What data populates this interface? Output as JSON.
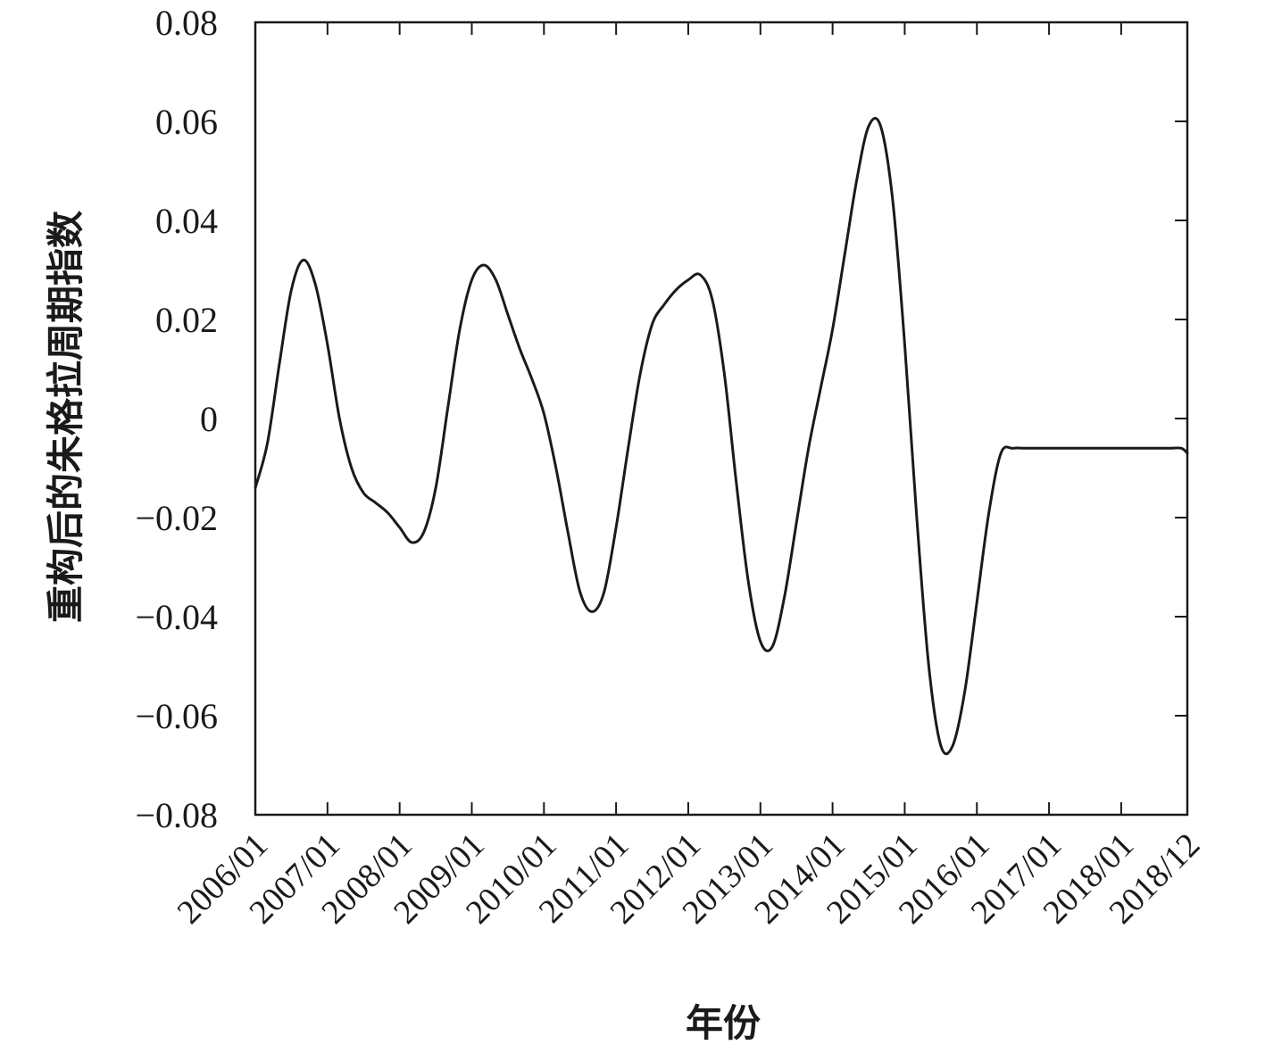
{
  "chart_data": {
    "type": "line",
    "xlabel": "年份",
    "ylabel": "重构后的朱格拉周期指数",
    "ylim": [
      -0.08,
      0.08
    ],
    "yticks": [
      {
        "value": 0.08,
        "label": "0.08"
      },
      {
        "value": 0.06,
        "label": "0.06"
      },
      {
        "value": 0.04,
        "label": "0.04"
      },
      {
        "value": 0.02,
        "label": "0.02"
      },
      {
        "value": 0,
        "label": "0"
      },
      {
        "value": -0.02,
        "label": "−0.02"
      },
      {
        "value": -0.04,
        "label": "−0.04"
      },
      {
        "value": -0.06,
        "label": "−0.06"
      },
      {
        "value": -0.08,
        "label": "−0.08"
      }
    ],
    "xticks": [
      {
        "value": "2006/01",
        "label": "2006/01"
      },
      {
        "value": "2007/01",
        "label": "2007/01"
      },
      {
        "value": "2008/01",
        "label": "2008/01"
      },
      {
        "value": "2009/01",
        "label": "2009/01"
      },
      {
        "value": "2010/01",
        "label": "2010/01"
      },
      {
        "value": "2011/01",
        "label": "2011/01"
      },
      {
        "value": "2012/01",
        "label": "2012/01"
      },
      {
        "value": "2013/01",
        "label": "2013/01"
      },
      {
        "value": "2014/01",
        "label": "2014/01"
      },
      {
        "value": "2015/01",
        "label": "2015/01"
      },
      {
        "value": "2016/01",
        "label": "2016/01"
      },
      {
        "value": "2017/01",
        "label": "2017/01"
      },
      {
        "value": "2018/01",
        "label": "2018/01"
      },
      {
        "value": "2018/12",
        "label": "2018/12"
      }
    ],
    "xlim": [
      "2006/01",
      "2018/12"
    ],
    "grid": false,
    "legend": "none",
    "line_color": "#1a1a1a",
    "series": [
      {
        "x": [
          "2006/01",
          "2006/03",
          "2006/05",
          "2006/07",
          "2006/09",
          "2006/11",
          "2007/01",
          "2007/03",
          "2007/05",
          "2007/07",
          "2007/09",
          "2007/11",
          "2008/01",
          "2008/03",
          "2008/05",
          "2008/07",
          "2008/09",
          "2008/11",
          "2009/01",
          "2009/03",
          "2009/05",
          "2009/07",
          "2009/09",
          "2009/11",
          "2010/01",
          "2010/03",
          "2010/05",
          "2010/07",
          "2010/09",
          "2010/11",
          "2011/01",
          "2011/03",
          "2011/05",
          "2011/07",
          "2011/09",
          "2011/11",
          "2012/01",
          "2012/03",
          "2012/05",
          "2012/07",
          "2012/09",
          "2012/11",
          "2013/01",
          "2013/03",
          "2013/05",
          "2013/07",
          "2013/09",
          "2013/11",
          "2014/01",
          "2014/03",
          "2014/05",
          "2014/07",
          "2014/09",
          "2014/11",
          "2015/01",
          "2015/03",
          "2015/05",
          "2015/07",
          "2015/09",
          "2015/11",
          "2016/01",
          "2016/03",
          "2016/05",
          "2016/07",
          "2016/09",
          "2016/11",
          "2017/01",
          "2017/03",
          "2017/05",
          "2017/07",
          "2017/09",
          "2017/11",
          "2018/01",
          "2018/03",
          "2018/05",
          "2018/07",
          "2018/09",
          "2018/11",
          "2018/12"
        ],
        "values": [
          -0.014,
          -0.005,
          0.011,
          0.026,
          0.032,
          0.027,
          0.015,
          0.0,
          -0.01,
          -0.015,
          -0.017,
          -0.019,
          -0.022,
          -0.025,
          -0.023,
          -0.014,
          0.002,
          0.018,
          0.028,
          0.031,
          0.028,
          0.021,
          0.014,
          0.008,
          0.001,
          -0.01,
          -0.023,
          -0.035,
          -0.039,
          -0.035,
          -0.022,
          -0.006,
          0.009,
          0.019,
          0.023,
          0.026,
          0.028,
          0.029,
          0.024,
          0.009,
          -0.013,
          -0.033,
          -0.045,
          -0.046,
          -0.036,
          -0.021,
          -0.006,
          0.006,
          0.018,
          0.033,
          0.048,
          0.059,
          0.059,
          0.044,
          0.015,
          -0.02,
          -0.05,
          -0.066,
          -0.066,
          -0.055,
          -0.037,
          -0.019,
          -0.007,
          -0.006,
          -0.006,
          -0.006,
          -0.006,
          -0.006,
          -0.006,
          -0.006,
          -0.006,
          -0.006,
          -0.006,
          -0.006,
          -0.006,
          -0.006,
          -0.006,
          -0.006,
          -0.007
        ]
      }
    ]
  }
}
